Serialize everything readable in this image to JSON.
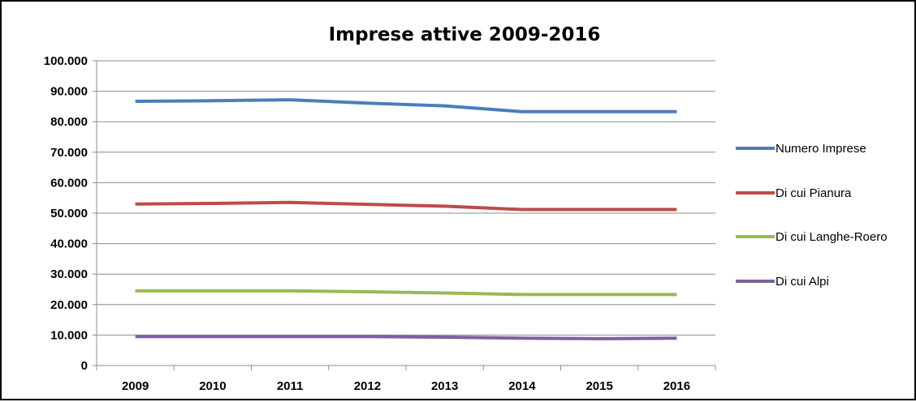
{
  "chart_data": {
    "type": "line",
    "title": "Imprese attive 2009-2016",
    "xlabel": "",
    "ylabel": "",
    "categories": [
      "2009",
      "2010",
      "2011",
      "2012",
      "2013",
      "2014",
      "2015",
      "2016"
    ],
    "ylim": [
      0,
      100000
    ],
    "yticks": [
      "0",
      "10.000",
      "20.000",
      "30.000",
      "40.000",
      "50.000",
      "60.000",
      "70.000",
      "80.000",
      "90.000",
      "100.000"
    ],
    "grid": true,
    "legend_position": "right",
    "series": [
      {
        "name": "Numero Imprese",
        "color": "#4a7ebb",
        "values": [
          86700,
          86900,
          87200,
          86100,
          85200,
          83300,
          83300,
          83300
        ]
      },
      {
        "name": "Di cui Pianura",
        "color": "#be4b48",
        "values": [
          53000,
          53200,
          53500,
          52900,
          52300,
          51200,
          51200,
          51200
        ]
      },
      {
        "name": "Di cui Langhe-Roero",
        "color": "#98b954",
        "values": [
          24500,
          24500,
          24500,
          24200,
          23800,
          23300,
          23300,
          23300
        ]
      },
      {
        "name": "Di cui Alpi",
        "color": "#7d60a0",
        "values": [
          9500,
          9500,
          9500,
          9500,
          9300,
          9000,
          8800,
          9000
        ]
      }
    ]
  }
}
